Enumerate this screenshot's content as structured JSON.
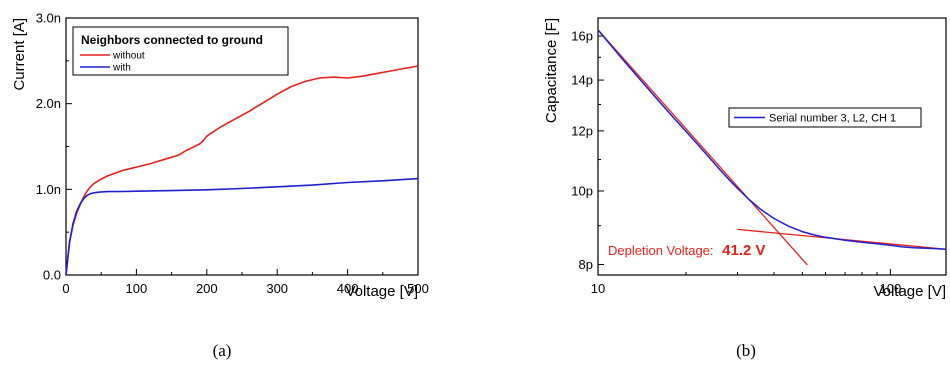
{
  "panels": {
    "a": {
      "caption": "(a)"
    },
    "b": {
      "caption": "(b)"
    }
  },
  "chart_data": [
    {
      "type": "line",
      "title": "",
      "xlabel": "Voltage [V]",
      "ylabel": "Current [A]",
      "xlim": [
        0,
        500
      ],
      "ylim": [
        0,
        3.0
      ],
      "x_ticks": [
        0,
        100,
        200,
        300,
        400,
        500
      ],
      "x_tick_labels": [
        "0",
        "100",
        "200",
        "300",
        "400",
        "500"
      ],
      "y_ticks": [
        0,
        1.0,
        2.0,
        3.0
      ],
      "y_tick_labels": [
        "0.0",
        "1.0n",
        "2.0n",
        "3.0n"
      ],
      "grid": false,
      "legend_title": "Neighbors connected to ground",
      "legend_position": "top-left",
      "series": [
        {
          "name": "without",
          "color": "#e8211c",
          "x": [
            0,
            5,
            10,
            15,
            20,
            25,
            30,
            35,
            40,
            50,
            60,
            70,
            80,
            90,
            100,
            120,
            140,
            160,
            170,
            180,
            190,
            195,
            200,
            205,
            220,
            240,
            260,
            280,
            300,
            320,
            340,
            360,
            380,
            400,
            420,
            440,
            460,
            480,
            500
          ],
          "y": [
            0,
            0.38,
            0.58,
            0.72,
            0.82,
            0.91,
            0.98,
            1.03,
            1.07,
            1.12,
            1.16,
            1.19,
            1.22,
            1.24,
            1.26,
            1.3,
            1.35,
            1.4,
            1.45,
            1.49,
            1.53,
            1.57,
            1.62,
            1.65,
            1.73,
            1.82,
            1.91,
            2.01,
            2.11,
            2.2,
            2.26,
            2.3,
            2.31,
            2.3,
            2.32,
            2.35,
            2.38,
            2.41,
            2.44
          ]
        },
        {
          "name": "with",
          "color": "#1f1fd0",
          "x": [
            0,
            5,
            10,
            15,
            20,
            25,
            30,
            35,
            40,
            45,
            50,
            60,
            80,
            100,
            150,
            200,
            250,
            300,
            350,
            400,
            450,
            500
          ],
          "y": [
            0,
            0.38,
            0.6,
            0.74,
            0.83,
            0.89,
            0.93,
            0.95,
            0.96,
            0.965,
            0.97,
            0.973,
            0.975,
            0.978,
            0.985,
            0.995,
            1.01,
            1.03,
            1.05,
            1.08,
            1.1,
            1.125
          ]
        }
      ]
    },
    {
      "type": "line",
      "title": "",
      "xlabel": "Voltage [V]",
      "ylabel": "Capacitance [F]",
      "x_scale": "log",
      "y_scale": "log",
      "xlim": [
        10,
        155
      ],
      "ylim": [
        7.75,
        16.9
      ],
      "x_ticks": [
        10,
        100
      ],
      "x_tick_labels": [
        "10",
        "100"
      ],
      "y_ticks": [
        8,
        10,
        12,
        14,
        16
      ],
      "y_tick_labels": [
        "8p",
        "10p",
        "12p",
        "14p",
        "16p"
      ],
      "grid": false,
      "legend_position": "right",
      "series": [
        {
          "name": "Serial number 3, L2, CH 1",
          "color": "#1f1fd0",
          "x": [
            10,
            12,
            14,
            16,
            18,
            20,
            22,
            24,
            26,
            28,
            30,
            33,
            36,
            40,
            45,
            50,
            55,
            60,
            70,
            80,
            90,
            100,
            110,
            120,
            130,
            140,
            155
          ],
          "y": [
            16.3,
            14.99,
            13.99,
            13.19,
            12.53,
            11.98,
            11.5,
            11.07,
            10.69,
            10.36,
            10.08,
            9.73,
            9.46,
            9.2,
            8.98,
            8.84,
            8.75,
            8.69,
            8.61,
            8.56,
            8.52,
            8.48,
            8.44,
            8.42,
            8.41,
            8.4,
            8.38
          ]
        }
      ],
      "fit_lines": [
        {
          "color": "#e8211c",
          "x": [
            10,
            52
          ],
          "y": [
            16.3,
            7.99
          ]
        },
        {
          "color": "#e8211c",
          "x": [
            30,
            155
          ],
          "y": [
            8.9,
            8.38
          ]
        }
      ],
      "annotations": [
        {
          "label": "Depletion Voltage:",
          "value": "41.2 V",
          "color": "#e8211c"
        }
      ]
    }
  ]
}
